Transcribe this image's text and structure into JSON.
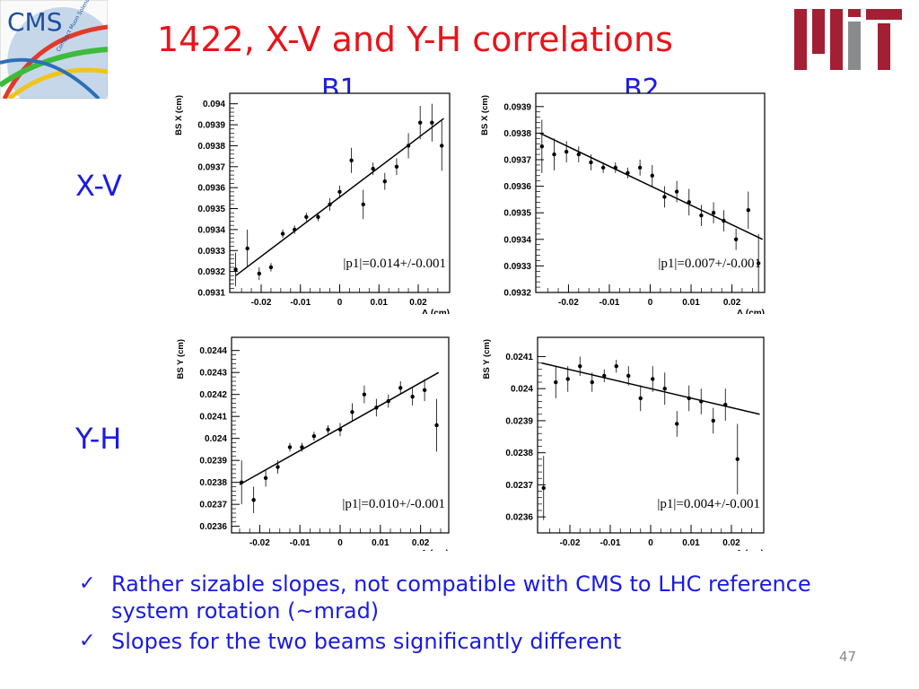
{
  "slide": {
    "title": "1422, X-V and Y-H correlations",
    "col_labels": [
      "B1",
      "B2"
    ],
    "row_labels": [
      "X-V",
      "Y-H"
    ],
    "cms_text": "CMS",
    "cms_subtext": "Compact Muon Solenoid",
    "bullets": [
      "Rather sizable slopes, not compatible with CMS to LHC reference system rotation (~mrad)",
      "Slopes for the two beams significantly different"
    ],
    "check_glyph": "✓",
    "page_number": "47",
    "colors": {
      "title": "#e8141c",
      "text": "#1a1ae6",
      "mit_red": "#a31f34",
      "mit_gray": "#8a8b8c"
    }
  },
  "chart_data": [
    {
      "type": "scatter",
      "panel": "B1 X-V",
      "xlabel": "Δ (cm)",
      "ylabel": "BS X (cm)",
      "xlim": [
        -0.028,
        0.028
      ],
      "ylim": [
        0.0931,
        0.09405
      ],
      "xticks": [
        -0.02,
        -0.01,
        0,
        0.01,
        0.02
      ],
      "xtick_labels": [
        "-0.02",
        "-0.01",
        "0",
        "0.01",
        "0.02"
      ],
      "yticks": [
        0.0931,
        0.0932,
        0.0933,
        0.0934,
        0.0935,
        0.0936,
        0.0937,
        0.0938,
        0.0939,
        0.094
      ],
      "ytick_labels": [
        "0.0931",
        "0.0932",
        "0.0933",
        "0.0934",
        "0.0935",
        "0.0936",
        "0.0937",
        "0.0938",
        "0.0939",
        "0.094"
      ],
      "points": [
        {
          "x": -0.0265,
          "y": 0.09321,
          "err": 8e-05
        },
        {
          "x": -0.0235,
          "y": 0.09331,
          "err": 9e-05
        },
        {
          "x": -0.0205,
          "y": 0.09319,
          "err": 3e-05
        },
        {
          "x": -0.0175,
          "y": 0.09322,
          "err": 2e-05
        },
        {
          "x": -0.0145,
          "y": 0.09338,
          "err": 2e-05
        },
        {
          "x": -0.0115,
          "y": 0.0934,
          "err": 2e-05
        },
        {
          "x": -0.0085,
          "y": 0.09346,
          "err": 2e-05
        },
        {
          "x": -0.0055,
          "y": 0.09346,
          "err": 2e-05
        },
        {
          "x": -0.0025,
          "y": 0.09352,
          "err": 3e-05
        },
        {
          "x": 0.0,
          "y": 0.09358,
          "err": 3e-05
        },
        {
          "x": 0.003,
          "y": 0.09373,
          "err": 6e-05
        },
        {
          "x": 0.006,
          "y": 0.09352,
          "err": 7e-05
        },
        {
          "x": 0.0085,
          "y": 0.09369,
          "err": 3e-05
        },
        {
          "x": 0.0115,
          "y": 0.09363,
          "err": 4e-05
        },
        {
          "x": 0.0145,
          "y": 0.0937,
          "err": 4e-05
        },
        {
          "x": 0.0175,
          "y": 0.0938,
          "err": 6e-05
        },
        {
          "x": 0.0205,
          "y": 0.09391,
          "err": 8e-05
        },
        {
          "x": 0.0235,
          "y": 0.09391,
          "err": 9e-05
        },
        {
          "x": 0.026,
          "y": 0.0938,
          "err": 0.00012
        }
      ],
      "fit": {
        "x": [
          -0.0265,
          0.0265
        ],
        "y": [
          0.09318,
          0.09393
        ]
      },
      "annotation": "|p1|=0.014+/-0.001"
    },
    {
      "type": "scatter",
      "panel": "B2 X-V",
      "xlabel": "Δ (cm)",
      "ylabel": "BS X (cm)",
      "xlim": [
        -0.028,
        0.028
      ],
      "ylim": [
        0.0932,
        0.09395
      ],
      "xticks": [
        -0.02,
        -0.01,
        0,
        0.01,
        0.02
      ],
      "xtick_labels": [
        "-0.02",
        "-0.01",
        "0",
        "0.01",
        "0.02"
      ],
      "yticks": [
        0.0932,
        0.0933,
        0.0934,
        0.0935,
        0.0936,
        0.0937,
        0.0938,
        0.0939
      ],
      "ytick_labels": [
        "0.0932",
        "0.0933",
        "0.0934",
        "0.0935",
        "0.0936",
        "0.0937",
        "0.0938",
        "0.0939"
      ],
      "points": [
        {
          "x": -0.0265,
          "y": 0.09375,
          "err": 0.0001
        },
        {
          "x": -0.0235,
          "y": 0.09372,
          "err": 6e-05
        },
        {
          "x": -0.0205,
          "y": 0.09373,
          "err": 4e-05
        },
        {
          "x": -0.0175,
          "y": 0.09372,
          "err": 3e-05
        },
        {
          "x": -0.0145,
          "y": 0.09369,
          "err": 3e-05
        },
        {
          "x": -0.0115,
          "y": 0.09367,
          "err": 2e-05
        },
        {
          "x": -0.0085,
          "y": 0.09367,
          "err": 2e-05
        },
        {
          "x": -0.0055,
          "y": 0.09365,
          "err": 2e-05
        },
        {
          "x": -0.0025,
          "y": 0.09367,
          "err": 3e-05
        },
        {
          "x": 0.0005,
          "y": 0.09364,
          "err": 4e-05
        },
        {
          "x": 0.0035,
          "y": 0.09356,
          "err": 4e-05
        },
        {
          "x": 0.0065,
          "y": 0.09358,
          "err": 4e-05
        },
        {
          "x": 0.0095,
          "y": 0.09354,
          "err": 5e-05
        },
        {
          "x": 0.0125,
          "y": 0.09349,
          "err": 4e-05
        },
        {
          "x": 0.0155,
          "y": 0.0935,
          "err": 4e-05
        },
        {
          "x": 0.018,
          "y": 0.09347,
          "err": 4e-05
        },
        {
          "x": 0.021,
          "y": 0.0934,
          "err": 4e-05
        },
        {
          "x": 0.024,
          "y": 0.09351,
          "err": 7e-05
        },
        {
          "x": 0.0265,
          "y": 0.09331,
          "err": 0.00011
        }
      ],
      "fit": {
        "x": [
          -0.027,
          0.0275
        ],
        "y": [
          0.0938,
          0.0934
        ]
      },
      "annotation": "|p1|=0.007+/-0.001"
    },
    {
      "type": "scatter",
      "panel": "B1 Y-H",
      "xlabel": "Δ (cm)",
      "ylabel": "BS Y (cm)",
      "xlim": [
        -0.027,
        0.027
      ],
      "ylim": [
        0.02357,
        0.02446
      ],
      "xticks": [
        -0.02,
        -0.01,
        0,
        0.01,
        0.02
      ],
      "xtick_labels": [
        "-0.02",
        "-0.01",
        "0",
        "0.01",
        "0.02"
      ],
      "yticks": [
        0.0236,
        0.0237,
        0.0238,
        0.0239,
        0.024,
        0.0241,
        0.0242,
        0.0243,
        0.0244
      ],
      "ytick_labels": [
        "0.0236",
        "0.0237",
        "0.0238",
        "0.0239",
        "0.024",
        "0.0241",
        "0.0242",
        "0.0243",
        "0.0244"
      ],
      "points": [
        {
          "x": -0.0245,
          "y": 0.0238,
          "err": 0.0001
        },
        {
          "x": -0.0215,
          "y": 0.02372,
          "err": 6e-05
        },
        {
          "x": -0.0185,
          "y": 0.02382,
          "err": 4e-05
        },
        {
          "x": -0.0155,
          "y": 0.02387,
          "err": 3e-05
        },
        {
          "x": -0.0125,
          "y": 0.02396,
          "err": 2e-05
        },
        {
          "x": -0.0095,
          "y": 0.02396,
          "err": 2e-05
        },
        {
          "x": -0.0065,
          "y": 0.02401,
          "err": 2e-05
        },
        {
          "x": -0.003,
          "y": 0.02404,
          "err": 2e-05
        },
        {
          "x": 0.0,
          "y": 0.02404,
          "err": 3e-05
        },
        {
          "x": 0.003,
          "y": 0.02412,
          "err": 4e-05
        },
        {
          "x": 0.006,
          "y": 0.0242,
          "err": 4e-05
        },
        {
          "x": 0.009,
          "y": 0.02414,
          "err": 4e-05
        },
        {
          "x": 0.012,
          "y": 0.02417,
          "err": 3e-05
        },
        {
          "x": 0.015,
          "y": 0.02423,
          "err": 3e-05
        },
        {
          "x": 0.018,
          "y": 0.02419,
          "err": 4e-05
        },
        {
          "x": 0.021,
          "y": 0.02422,
          "err": 5e-05
        },
        {
          "x": 0.024,
          "y": 0.02406,
          "err": 0.00012
        }
      ],
      "fit": {
        "x": [
          -0.025,
          0.0245
        ],
        "y": [
          0.02379,
          0.0243
        ]
      },
      "annotation": "|p1|=0.010+/-0.001"
    },
    {
      "type": "scatter",
      "panel": "B2 Y-H",
      "xlabel": "Δ (cm)",
      "ylabel": "BS Y (cm)",
      "xlim": [
        -0.028,
        0.028
      ],
      "ylim": [
        0.02355,
        0.02416
      ],
      "xticks": [
        -0.02,
        -0.01,
        0,
        0.01,
        0.02
      ],
      "xtick_labels": [
        "-0.02",
        "-0.01",
        "0",
        "0.01",
        "0.02"
      ],
      "yticks": [
        0.0236,
        0.0237,
        0.0238,
        0.0239,
        0.024,
        0.0241
      ],
      "ytick_labels": [
        "0.0236",
        "0.0237",
        "0.0238",
        "0.0239",
        "0.024",
        "0.0241"
      ],
      "points": [
        {
          "x": -0.0265,
          "y": 0.02369,
          "err": 0.0001
        },
        {
          "x": -0.0235,
          "y": 0.02402,
          "err": 5e-05
        },
        {
          "x": -0.0205,
          "y": 0.02403,
          "err": 4e-05
        },
        {
          "x": -0.0175,
          "y": 0.02407,
          "err": 3e-05
        },
        {
          "x": -0.0145,
          "y": 0.02402,
          "err": 3e-05
        },
        {
          "x": -0.0115,
          "y": 0.02404,
          "err": 2e-05
        },
        {
          "x": -0.0085,
          "y": 0.02407,
          "err": 2e-05
        },
        {
          "x": -0.0055,
          "y": 0.02404,
          "err": 3e-05
        },
        {
          "x": -0.0025,
          "y": 0.02397,
          "err": 4e-05
        },
        {
          "x": 0.0005,
          "y": 0.02403,
          "err": 4e-05
        },
        {
          "x": 0.0035,
          "y": 0.024,
          "err": 5e-05
        },
        {
          "x": 0.0065,
          "y": 0.02389,
          "err": 4e-05
        },
        {
          "x": 0.0095,
          "y": 0.02397,
          "err": 4e-05
        },
        {
          "x": 0.0125,
          "y": 0.02396,
          "err": 4e-05
        },
        {
          "x": 0.0155,
          "y": 0.0239,
          "err": 4e-05
        },
        {
          "x": 0.0185,
          "y": 0.02395,
          "err": 5e-05
        },
        {
          "x": 0.0215,
          "y": 0.02378,
          "err": 0.00011
        }
      ],
      "fit": {
        "x": [
          -0.027,
          0.027
        ],
        "y": [
          0.02408,
          0.02392
        ]
      },
      "annotation": "|p1|=0.004+/-0.001"
    }
  ]
}
